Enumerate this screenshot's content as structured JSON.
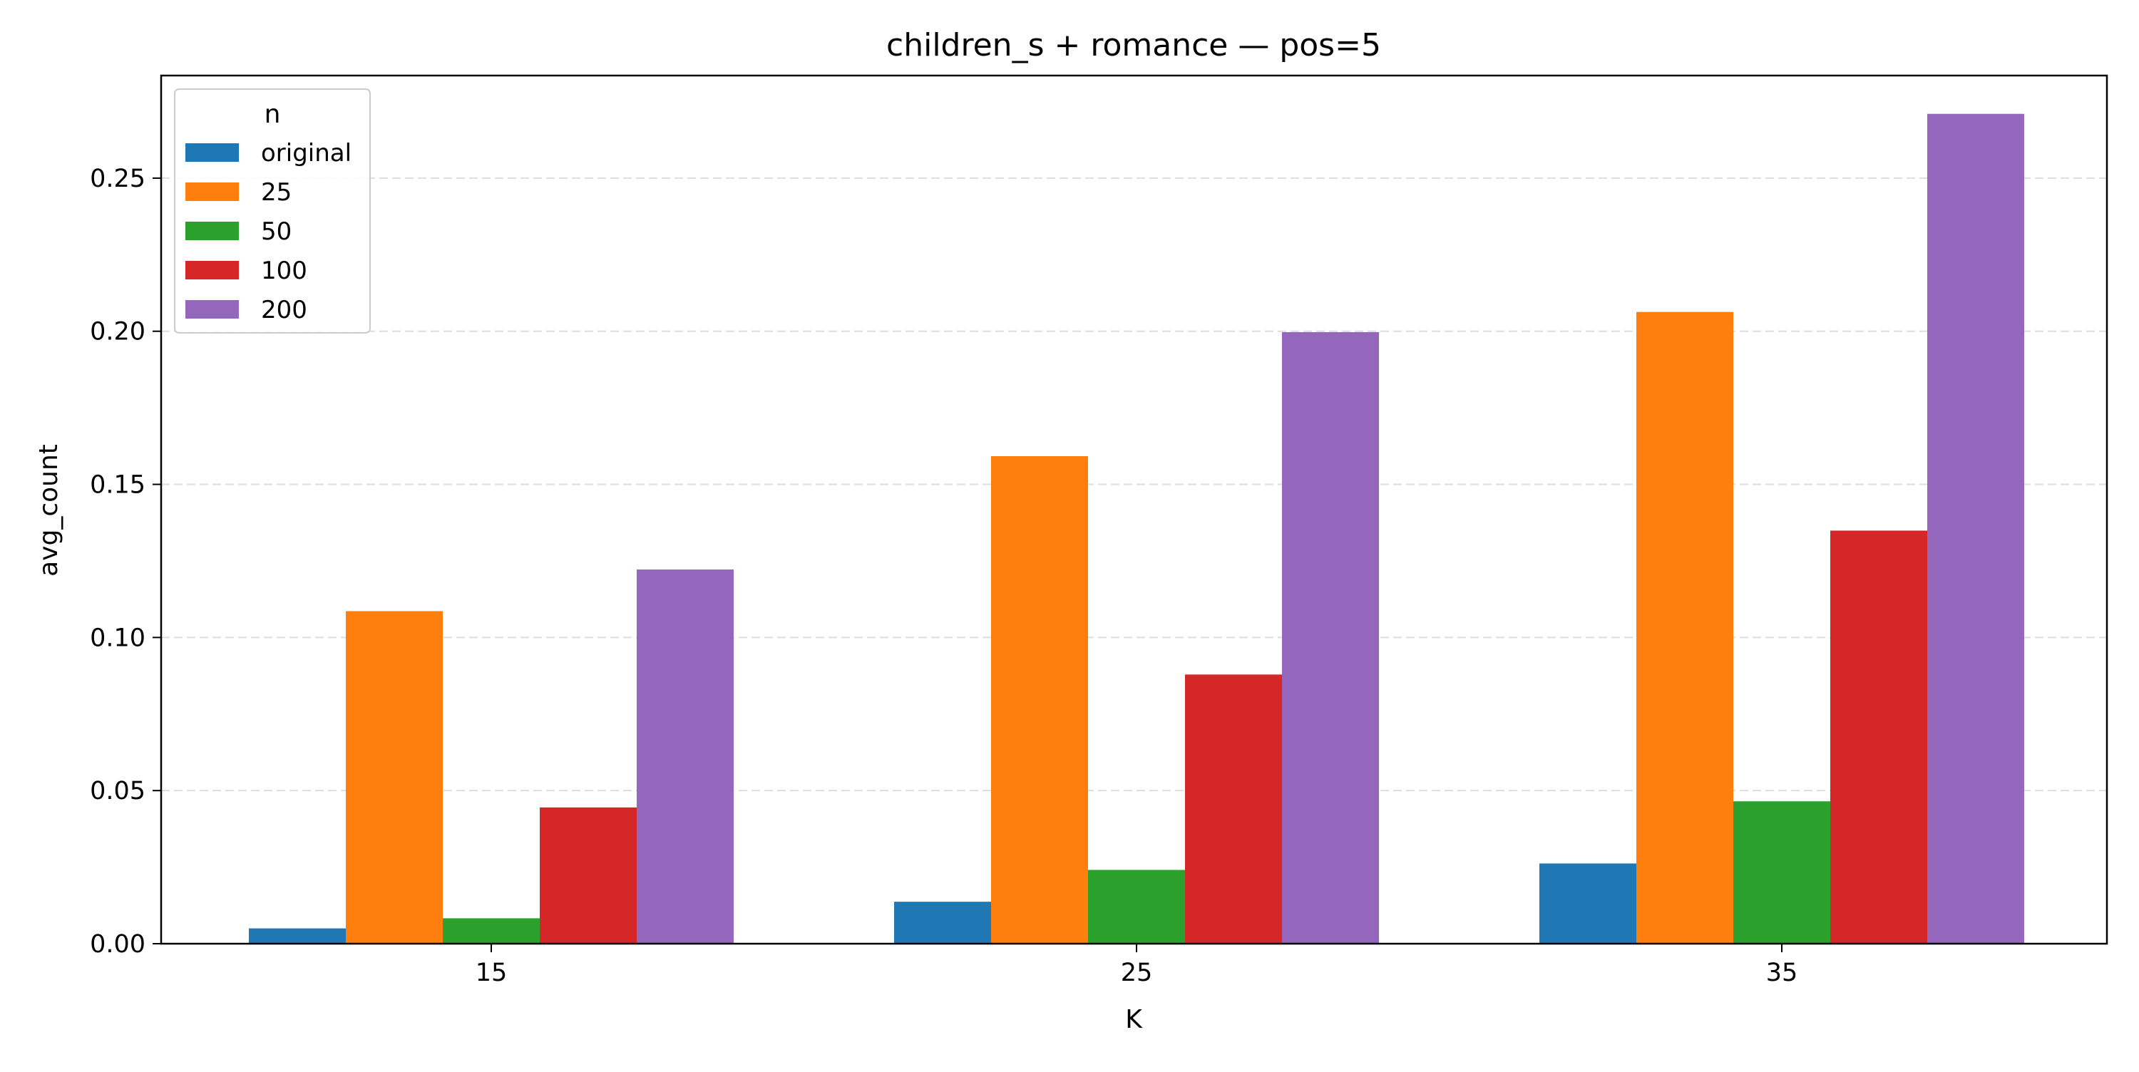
{
  "chart_data": {
    "type": "bar",
    "title": "children_s + romance — pos=5",
    "xlabel": "K",
    "ylabel": "avg_count",
    "categories": [
      "15",
      "25",
      "35"
    ],
    "series": [
      {
        "name": "original",
        "color": "#1f77b4",
        "values": [
          0.005,
          0.0137,
          0.0262
        ]
      },
      {
        "name": "25",
        "color": "#ff7f0e",
        "values": [
          0.1086,
          0.1592,
          0.2063
        ]
      },
      {
        "name": "50",
        "color": "#2ca02c",
        "values": [
          0.0083,
          0.0241,
          0.0465
        ]
      },
      {
        "name": "100",
        "color": "#d62728",
        "values": [
          0.0445,
          0.0879,
          0.1349
        ]
      },
      {
        "name": "200",
        "color": "#9467bd",
        "values": [
          0.1222,
          0.1997,
          0.271
        ]
      }
    ],
    "ylim": [
      0,
      0.2835
    ],
    "yticks": [
      "0.00",
      "0.05",
      "0.10",
      "0.15",
      "0.20",
      "0.25"
    ],
    "grid": "horizontal, dashed",
    "legend": {
      "title": "n",
      "position": "top-left"
    }
  }
}
